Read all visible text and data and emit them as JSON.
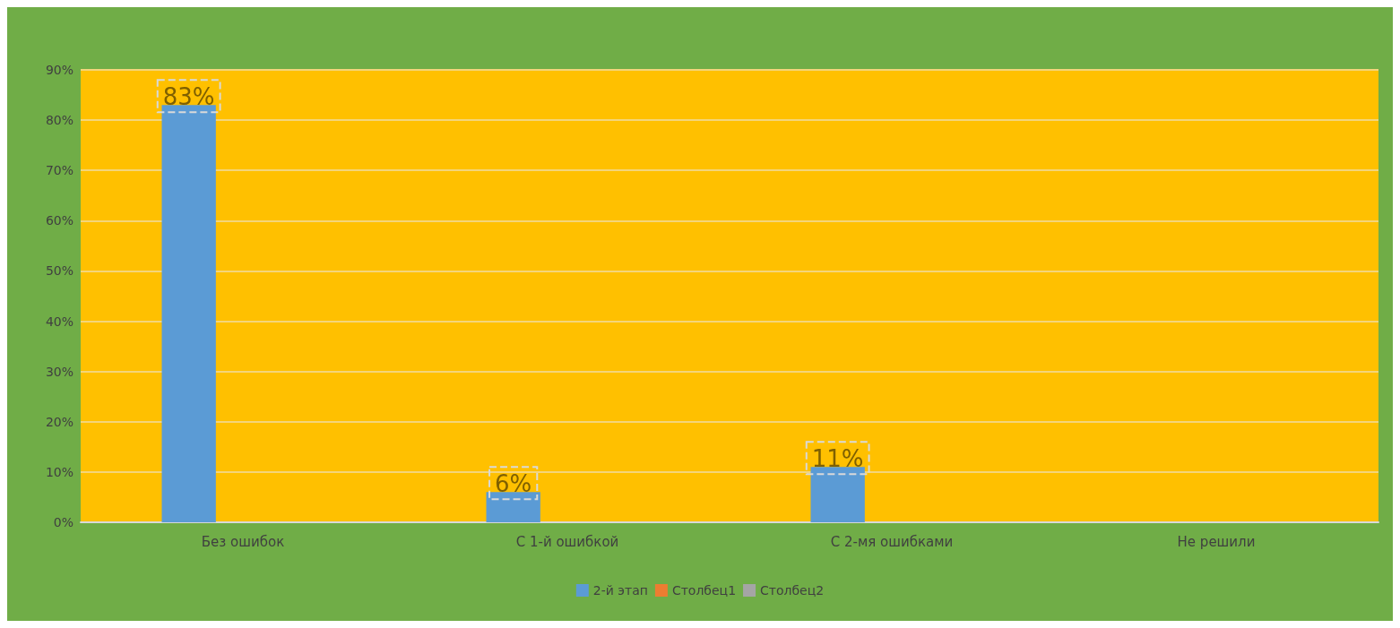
{
  "chart_data": {
    "type": "bar",
    "categories": [
      "Без ошибок",
      "С 1-й ошибкой",
      "С 2-мя ошибками",
      "Не решили"
    ],
    "series": [
      {
        "name": "2-й этап",
        "color": "#5b9bd5",
        "values": [
          83,
          6,
          11,
          null
        ],
        "value_labels": [
          "83%",
          "6%",
          "11%",
          null
        ]
      },
      {
        "name": "Столбец1",
        "color": "#ed7d31",
        "values": [
          null,
          null,
          null,
          null
        ]
      },
      {
        "name": "Столбец2",
        "color": "#a5a5a5",
        "values": [
          null,
          null,
          null,
          null
        ]
      }
    ],
    "ylim": [
      0,
      90
    ],
    "yticks": [
      {
        "value": 0,
        "label": "0%"
      },
      {
        "value": 10,
        "label": "10%"
      },
      {
        "value": 20,
        "label": "20%"
      },
      {
        "value": 30,
        "label": "30%"
      },
      {
        "value": 40,
        "label": "40%"
      },
      {
        "value": 50,
        "label": "50%"
      },
      {
        "value": 60,
        "label": "60%"
      },
      {
        "value": 70,
        "label": "70%"
      },
      {
        "value": 80,
        "label": "80%"
      },
      {
        "value": 90,
        "label": "90%"
      }
    ],
    "grid": "y",
    "legend": "bottom"
  }
}
